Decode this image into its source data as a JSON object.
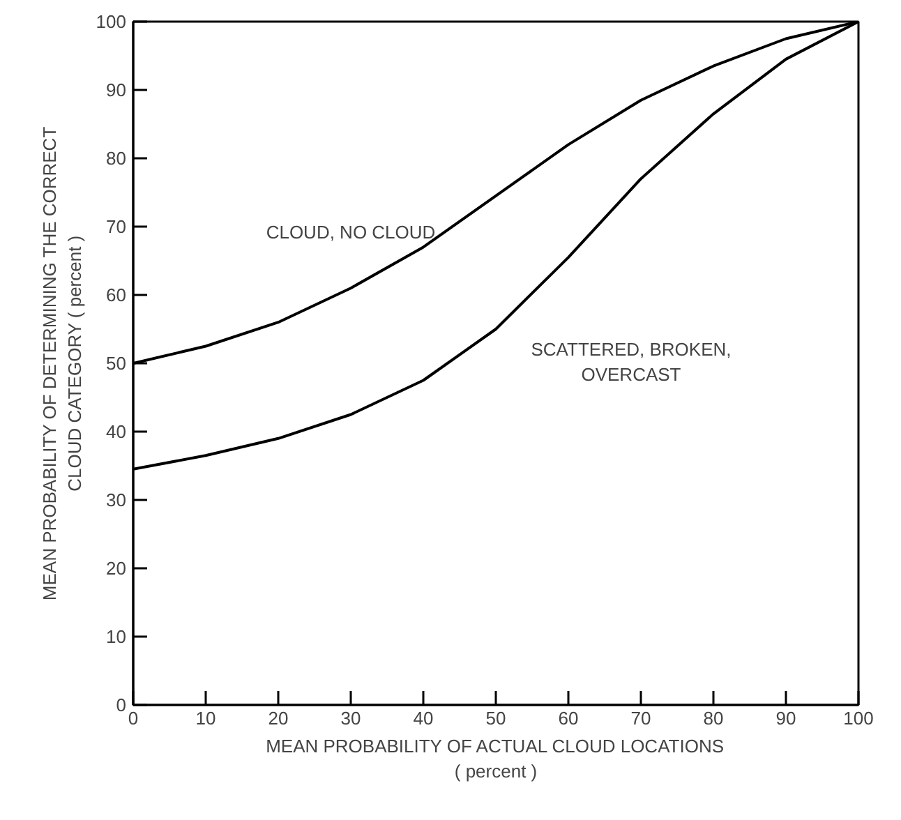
{
  "chart_data": {
    "type": "line",
    "xlabel": "MEAN PROBABILITY OF ACTUAL CLOUD LOCATIONS\n( percent )",
    "ylabel": "MEAN PROBABILITY OF DETERMINING THE CORRECT\nCLOUD CATEGORY ( percent )",
    "x": [
      0,
      10,
      20,
      30,
      40,
      50,
      60,
      70,
      80,
      90,
      100
    ],
    "series": [
      {
        "name": "CLOUD, NO CLOUD",
        "color": "#000000",
        "values": [
          50,
          52.5,
          56,
          61,
          67,
          74.5,
          82,
          88.5,
          93.5,
          97.5,
          100
        ]
      },
      {
        "name": "SCATTERED, BROKEN,\nOVERCAST",
        "color": "#000000",
        "values": [
          34.5,
          36.5,
          39,
          42.5,
          47.5,
          55,
          65.5,
          77,
          86.5,
          94.5,
          100
        ]
      }
    ],
    "xlim": [
      0,
      100
    ],
    "ylim": [
      0,
      100
    ],
    "xticks": [
      0,
      10,
      20,
      30,
      40,
      50,
      60,
      70,
      80,
      90,
      100
    ],
    "yticks": [
      0,
      10,
      20,
      30,
      40,
      50,
      60,
      70,
      80,
      90,
      100
    ],
    "grid": false,
    "marker": "none",
    "line_style": "solid"
  }
}
